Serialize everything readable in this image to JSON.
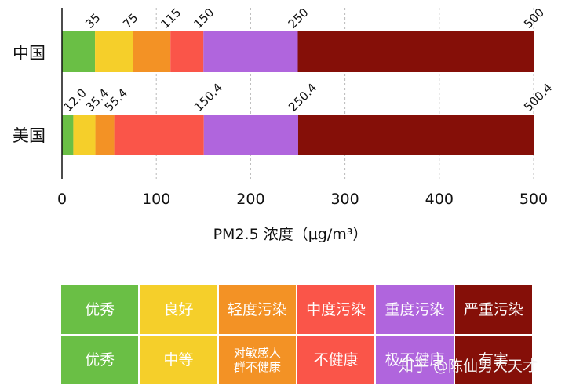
{
  "chart_data": {
    "type": "bar",
    "orientation": "horizontal-stacked",
    "categories": [
      "中国",
      "美国"
    ],
    "xlabel": "PM2.5 浓度（μg/m³）",
    "xlim": [
      0,
      500
    ],
    "xticks": [
      "0",
      "100",
      "200",
      "300",
      "400",
      "500"
    ],
    "grid": "vertical-dashed",
    "series": [
      {
        "category": "中国",
        "segments": [
          {
            "from": 0,
            "to": 35,
            "label": "35",
            "color": "#6abf45"
          },
          {
            "from": 35,
            "to": 75,
            "label": "75",
            "color": "#f5cf2a"
          },
          {
            "from": 75,
            "to": 115,
            "label": "115",
            "color": "#f39225"
          },
          {
            "from": 115,
            "to": 150,
            "label": "150",
            "color": "#fa5549"
          },
          {
            "from": 150,
            "to": 250,
            "label": "250",
            "color": "#b065dd"
          },
          {
            "from": 250,
            "to": 500,
            "label": "500",
            "color": "#850f08"
          }
        ]
      },
      {
        "category": "美国",
        "segments": [
          {
            "from": 0,
            "to": 12.0,
            "label": "12.0",
            "color": "#6abf45"
          },
          {
            "from": 12.0,
            "to": 35.4,
            "label": "35.4",
            "color": "#f5cf2a"
          },
          {
            "from": 35.4,
            "to": 55.4,
            "label": "55.4",
            "color": "#f39225"
          },
          {
            "from": 55.4,
            "to": 150.4,
            "label": "150.4",
            "color": "#fa5549"
          },
          {
            "from": 150.4,
            "to": 250.4,
            "label": "250.4",
            "color": "#b065dd"
          },
          {
            "from": 250.4,
            "to": 500.4,
            "label": "500.4",
            "color": "#850f08"
          }
        ]
      }
    ]
  },
  "legend": {
    "colors": [
      "#6abf45",
      "#f5cf2a",
      "#f39225",
      "#fa5549",
      "#b065dd",
      "#850f08"
    ],
    "china_labels": [
      "优秀",
      "良好",
      "轻度污染",
      "中度污染",
      "重度污染",
      "严重污染"
    ],
    "us_labels": [
      "优秀",
      "中等",
      "对敏感人\n群不健康",
      "不健康",
      "极不健康",
      "有害"
    ]
  },
  "watermark": "知乎 @陈仙男大天才"
}
